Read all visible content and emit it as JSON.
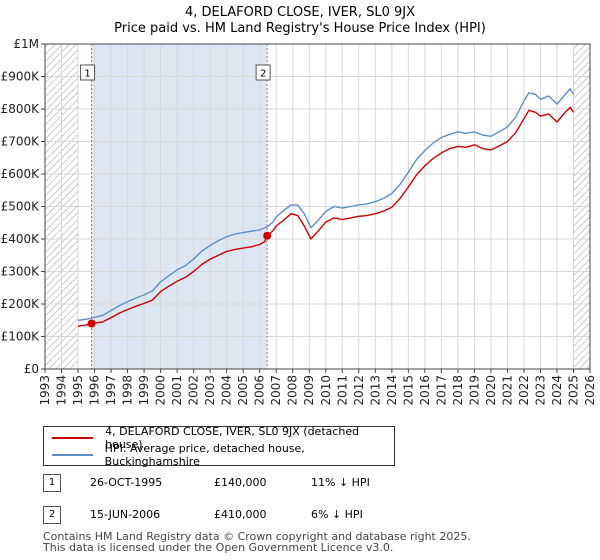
{
  "title": "4, DELAFORD CLOSE, IVER, SL0 9JX",
  "subtitle": "Price paid vs. HM Land Registry's House Price Index (HPI)",
  "colors": {
    "property": "#cc0000",
    "hpi": "#5b8fc7",
    "shade": "#dde6f3",
    "hatch": "#999999",
    "grid": "#d8d8d8"
  },
  "legend": {
    "property_label": "4, DELAFORD CLOSE, IVER, SL0 9JX (detached house)",
    "hpi_label": "HPI: Average price, detached house, Buckinghamshire"
  },
  "transactions": [
    {
      "num": "1",
      "date": "26-OCT-1995",
      "price": "£140,000",
      "hpi_diff": "11% ↓ HPI"
    },
    {
      "num": "2",
      "date": "15-JUN-2006",
      "price": "£410,000",
      "hpi_diff": "6% ↓ HPI"
    }
  ],
  "footer": {
    "line1": "Contains HM Land Registry data © Crown copyright and database right 2025.",
    "line2": "This data is licensed under the Open Government Licence v3.0."
  },
  "chart_data": {
    "type": "line",
    "title": "4, DELAFORD CLOSE, IVER, SL0 9JX",
    "subtitle": "Price paid vs. HM Land Registry's House Price Index (HPI)",
    "xlim": [
      1993,
      2026
    ],
    "ylim": [
      0,
      1000000
    ],
    "x_ticks": [
      "1993",
      "1994",
      "1995",
      "1996",
      "1997",
      "1998",
      "1999",
      "2000",
      "2001",
      "2002",
      "2003",
      "2004",
      "2005",
      "2006",
      "2007",
      "2008",
      "2009",
      "2010",
      "2011",
      "2012",
      "2013",
      "2014",
      "2015",
      "2016",
      "2017",
      "2018",
      "2019",
      "2020",
      "2021",
      "2022",
      "2023",
      "2024",
      "2025",
      "2026"
    ],
    "y_ticks": [
      {
        "value": 0,
        "label": "£0"
      },
      {
        "value": 100000,
        "label": "£100K"
      },
      {
        "value": 200000,
        "label": "£200K"
      },
      {
        "value": 300000,
        "label": "£300K"
      },
      {
        "value": 400000,
        "label": "£400K"
      },
      {
        "value": 500000,
        "label": "£500K"
      },
      {
        "value": 600000,
        "label": "£600K"
      },
      {
        "value": 700000,
        "label": "£700K"
      },
      {
        "value": 800000,
        "label": "£800K"
      },
      {
        "value": 900000,
        "label": "£900K"
      },
      {
        "value": 1000000,
        "label": "£1M"
      }
    ],
    "grid": true,
    "hatched_ranges": [
      [
        1993,
        1995.0
      ],
      [
        2025.0,
        2026
      ]
    ],
    "shaded_range": [
      1995.82,
      2006.45
    ],
    "markers": [
      {
        "label": "1",
        "x": 1995.82,
        "y": 140000
      },
      {
        "label": "2",
        "x": 2006.45,
        "y": 410000
      }
    ],
    "series": [
      {
        "name": "4, DELAFORD CLOSE, IVER, SL0 9JX (detached house)",
        "color": "#cc0000",
        "x": [
          1995.0,
          1995.5,
          1995.82,
          1996.5,
          1997.0,
          1997.5,
          1998.0,
          1998.5,
          1999.0,
          1999.5,
          2000.0,
          2000.5,
          2001.0,
          2001.5,
          2002.0,
          2002.5,
          2003.0,
          2003.5,
          2004.0,
          2004.5,
          2005.0,
          2005.5,
          2006.0,
          2006.3,
          2006.45,
          2006.8,
          2007.0,
          2007.5,
          2007.9,
          2008.3,
          2008.7,
          2009.1,
          2009.5,
          2010.0,
          2010.5,
          2011.0,
          2011.5,
          2012.0,
          2012.5,
          2013.0,
          2013.5,
          2014.0,
          2014.5,
          2015.0,
          2015.5,
          2016.0,
          2016.5,
          2017.0,
          2017.5,
          2018.0,
          2018.5,
          2019.0,
          2019.5,
          2020.0,
          2020.5,
          2021.0,
          2021.5,
          2022.0,
          2022.3,
          2022.7,
          2023.0,
          2023.5,
          2024.0,
          2024.5,
          2024.8,
          2025.0
        ],
        "y": [
          132000,
          135000,
          140000,
          145000,
          158000,
          172000,
          183000,
          193000,
          202000,
          212000,
          238000,
          255000,
          270000,
          282000,
          300000,
          322000,
          338000,
          350000,
          362000,
          368000,
          372000,
          376000,
          383000,
          392000,
          410000,
          425000,
          440000,
          460000,
          478000,
          472000,
          440000,
          400000,
          422000,
          452000,
          465000,
          460000,
          465000,
          470000,
          472000,
          478000,
          486000,
          498000,
          525000,
          560000,
          598000,
          625000,
          648000,
          665000,
          678000,
          685000,
          682000,
          690000,
          678000,
          674000,
          686000,
          700000,
          727000,
          770000,
          796000,
          790000,
          778000,
          785000,
          760000,
          790000,
          805000,
          790000
        ]
      },
      {
        "name": "HPI: Average price, detached house, Buckinghamshire",
        "color": "#5b8fc7",
        "x": [
          1995.0,
          1995.5,
          1995.82,
          1996.5,
          1997.0,
          1997.5,
          1998.0,
          1998.5,
          1999.0,
          1999.5,
          2000.0,
          2000.5,
          2001.0,
          2001.5,
          2002.0,
          2002.5,
          2003.0,
          2003.5,
          2004.0,
          2004.5,
          2005.0,
          2005.5,
          2006.0,
          2006.3,
          2006.45,
          2006.8,
          2007.0,
          2007.5,
          2007.9,
          2008.3,
          2008.7,
          2009.1,
          2009.5,
          2010.0,
          2010.5,
          2011.0,
          2011.5,
          2012.0,
          2012.5,
          2013.0,
          2013.5,
          2014.0,
          2014.5,
          2015.0,
          2015.5,
          2016.0,
          2016.5,
          2017.0,
          2017.5,
          2018.0,
          2018.5,
          2019.0,
          2019.5,
          2020.0,
          2020.5,
          2021.0,
          2021.5,
          2022.0,
          2022.3,
          2022.7,
          2023.0,
          2023.5,
          2024.0,
          2024.5,
          2024.8,
          2025.0
        ],
        "y": [
          150000,
          153000,
          157000,
          165000,
          180000,
          195000,
          207000,
          218000,
          228000,
          240000,
          268000,
          287000,
          305000,
          318000,
          338000,
          363000,
          380000,
          395000,
          407000,
          415000,
          420000,
          424000,
          428000,
          434000,
          437000,
          452000,
          468000,
          490000,
          505000,
          505000,
          478000,
          435000,
          455000,
          485000,
          500000,
          495000,
          500000,
          505000,
          508000,
          515000,
          525000,
          540000,
          568000,
          605000,
          645000,
          672000,
          695000,
          712000,
          722000,
          730000,
          725000,
          730000,
          720000,
          716000,
          730000,
          745000,
          775000,
          825000,
          850000,
          845000,
          830000,
          840000,
          815000,
          845000,
          862000,
          845000
        ]
      }
    ]
  }
}
